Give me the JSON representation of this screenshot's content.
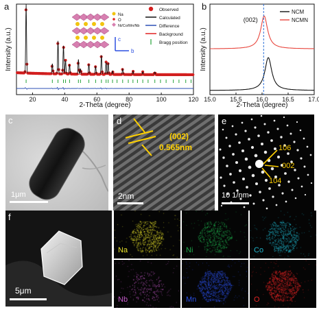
{
  "panel_labels": {
    "a": "a",
    "b": "b",
    "c": "c",
    "d": "d",
    "e": "e",
    "f": "f"
  },
  "colors": {
    "observed": "#d41f1f",
    "calculated": "#111111",
    "difference": "#2b4fb5",
    "background": "#e02020",
    "bragg": "#25a33a",
    "ncm": "#111111",
    "ncmn": "#e8453c",
    "annotation_yellow": "#ffd000",
    "na": "#e6e02a",
    "ni": "#1ea84a",
    "co": "#1fb3c9",
    "nb": "#c45ac9",
    "mn": "#2a4ee0",
    "o": "#e02424"
  },
  "chart_data": [
    {
      "type": "line",
      "panel": "a",
      "xlabel": "2-Theta (degree)",
      "ylabel": "Intensity (a.u.)",
      "xlim": [
        10,
        120
      ],
      "xticks": [
        20,
        40,
        60,
        80,
        100,
        120
      ],
      "legend_position": "top-right",
      "legend": [
        "Observed",
        "Calculated",
        "Difference",
        "Background",
        "Bragg position"
      ],
      "structure_labels": [
        "Na",
        "O",
        "Ni/Co/Mn/Nb"
      ],
      "axis_labels": {
        "c": "c",
        "b": "b"
      },
      "peaks": [
        {
          "x": 16.0,
          "h": 1.0
        },
        {
          "x": 32.3,
          "h": 0.15
        },
        {
          "x": 35.8,
          "h": 0.48
        },
        {
          "x": 39.2,
          "h": 0.42
        },
        {
          "x": 40.5,
          "h": 0.2
        },
        {
          "x": 43.0,
          "h": 0.14
        },
        {
          "x": 48.5,
          "h": 0.22
        },
        {
          "x": 49.8,
          "h": 0.08
        },
        {
          "x": 55.0,
          "h": 0.15
        },
        {
          "x": 59.2,
          "h": 0.12
        },
        {
          "x": 62.8,
          "h": 0.28
        },
        {
          "x": 65.7,
          "h": 0.18
        },
        {
          "x": 67.0,
          "h": 0.17
        },
        {
          "x": 69.7,
          "h": 0.05
        },
        {
          "x": 76.0,
          "h": 0.08
        },
        {
          "x": 82.4,
          "h": 0.05
        },
        {
          "x": 88.5,
          "h": 0.04
        },
        {
          "x": 96.0,
          "h": 0.04
        }
      ],
      "bragg_positions": [
        16.0,
        32.3,
        35.8,
        39.2,
        40.5,
        43.0,
        48.5,
        49.8,
        55.0,
        59.2,
        62.8,
        65.7,
        67.0,
        69.7,
        72.5,
        76.0,
        79.5,
        82.4,
        85.2,
        88.5,
        91.8,
        96.0,
        99.5,
        103.0,
        107.5,
        111.0,
        115.2,
        118.5
      ]
    },
    {
      "type": "line",
      "panel": "b",
      "xlabel": "2-Theta (degree)",
      "ylabel": "Intensity (a.u.)",
      "xlim": [
        15.0,
        17.0
      ],
      "xticks": [
        "15.0",
        "15.5",
        "16.0",
        "16.5",
        "17.0"
      ],
      "annotation": "(002)",
      "reference_line_x": 16.03,
      "legend_position": "top-right",
      "series": [
        {
          "name": "NCM",
          "peak_x": 16.12,
          "offset": 0.0
        },
        {
          "name": "NCMN",
          "peak_x": 16.04,
          "offset": 0.46
        }
      ]
    }
  ],
  "panel_d": {
    "plane": "(002)",
    "spacing": "0.565nm",
    "scale": "2nm"
  },
  "panel_e": {
    "spots": [
      "106",
      "002",
      "104"
    ],
    "scale": "10 1/nm"
  },
  "panel_c": {
    "scale": "1μm"
  },
  "panel_f": {
    "scale": "5μm",
    "elements": [
      "Na",
      "Ni",
      "Co",
      "Nb",
      "Mn",
      "O"
    ]
  }
}
